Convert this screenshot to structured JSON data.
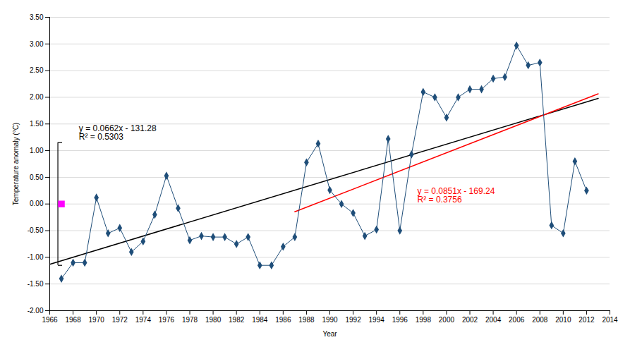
{
  "chart_data": {
    "type": "line",
    "xlabel": "Year",
    "ylabel": "Temperature anomaly (°C)",
    "x": [
      1967,
      1968,
      1969,
      1970,
      1971,
      1972,
      1973,
      1974,
      1975,
      1976,
      1977,
      1978,
      1979,
      1980,
      1981,
      1982,
      1983,
      1984,
      1985,
      1986,
      1987,
      1988,
      1989,
      1990,
      1991,
      1992,
      1993,
      1994,
      1995,
      1996,
      1997,
      1998,
      1999,
      2000,
      2001,
      2002,
      2003,
      2004,
      2005,
      2006,
      2007,
      2008,
      2009,
      2010,
      2011,
      2012
    ],
    "series": [
      {
        "color": "#1F4E79",
        "marker": "diamond",
        "values": [
          -1.4,
          -1.1,
          -1.1,
          0.12,
          -0.55,
          -0.45,
          -0.9,
          -0.7,
          -0.2,
          0.53,
          -0.08,
          -0.68,
          -0.6,
          -0.62,
          -0.62,
          -0.75,
          -0.62,
          -1.15,
          -1.15,
          -0.8,
          -0.62,
          0.78,
          1.13,
          0.26,
          0.0,
          -0.17,
          -0.6,
          -0.48,
          1.22,
          -0.5,
          0.93,
          2.1,
          2.0,
          1.62,
          2.0,
          2.15,
          2.15,
          2.35,
          2.38,
          2.97,
          2.6,
          2.65,
          -0.4,
          -0.55,
          0.8,
          0.25
        ]
      }
    ],
    "trend_lines": [
      {
        "x": [
          1966,
          2013
        ],
        "values": [
          -1.1308,
          1.9806
        ],
        "color": "#000000"
      },
      {
        "x": [
          1987,
          2013
        ],
        "values": [
          -0.1463,
          2.0663
        ],
        "color": "#FF0000"
      }
    ],
    "std_dev": {
      "x": 1967,
      "value": 0.0,
      "error": 1.15,
      "color": "#FF00FF",
      "marker": "square"
    },
    "annotations": [
      {
        "text": "y = 0.0662x - 131.28\nR² = 0.5303",
        "x": 1968.5,
        "y": 1.48,
        "color": "#000000"
      },
      {
        "text": "y = 0.0851x - 169.24\nR² = 0.3756",
        "x": 1997.5,
        "y": 0.3,
        "color": "#FF0000"
      }
    ],
    "xlim": [
      1966,
      2014
    ],
    "xticks": [
      1966,
      1968,
      1970,
      1972,
      1974,
      1976,
      1978,
      1980,
      1982,
      1984,
      1986,
      1988,
      1990,
      1992,
      1994,
      1996,
      1998,
      2000,
      2002,
      2004,
      2006,
      2008,
      2010,
      2012,
      2014
    ],
    "ylim": [
      -2.0,
      3.5
    ],
    "yticks": [
      {
        "value": -2.0,
        "label": "-2.00"
      },
      {
        "value": -1.5,
        "label": "-1.50"
      },
      {
        "value": -1.0,
        "label": "-1.00"
      },
      {
        "value": -0.5,
        "label": "-0.50"
      },
      {
        "value": 0.0,
        "label": "0.00"
      },
      {
        "value": 0.5,
        "label": "0.50"
      },
      {
        "value": 1.0,
        "label": "1.00"
      },
      {
        "value": 1.5,
        "label": "1.50"
      },
      {
        "value": 2.0,
        "label": "2.00"
      },
      {
        "value": 2.5,
        "label": "2.50"
      },
      {
        "value": 3.0,
        "label": "3.00"
      },
      {
        "value": 3.5,
        "label": "3.50"
      }
    ],
    "grid": true
  }
}
